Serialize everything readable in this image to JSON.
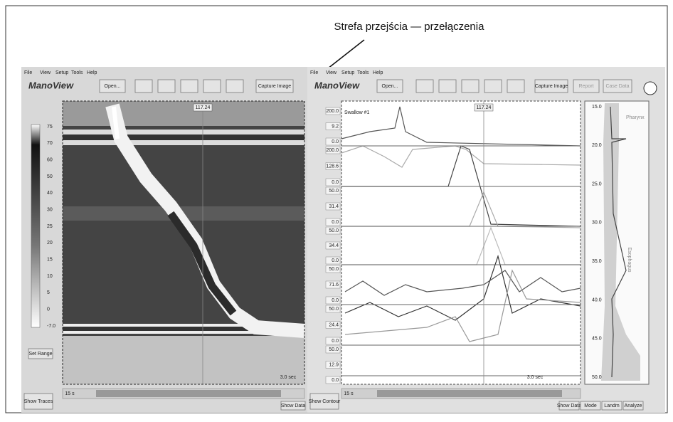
{
  "annotation": "Strefa przejścia — przełączenia",
  "left_window": {
    "menu": [
      "File",
      "View",
      "Setup",
      "Tools",
      "Help"
    ],
    "logo": "ManoView",
    "open": "Open...",
    "capture": "Capture Image",
    "time_marker": "117.24",
    "color_scale": [
      "75",
      "70",
      "60",
      "50",
      "40",
      "30",
      "25",
      "20",
      "15",
      "10",
      "5",
      "0",
      "-7.0"
    ],
    "set_range": "Set Range",
    "time_scale": "3.0 sec",
    "speed": "15 s",
    "show_traces": "Show Traces",
    "show_data": "Show Data"
  },
  "right_window": {
    "menu": [
      "File",
      "View",
      "Setup",
      "Tools",
      "Help"
    ],
    "logo": "ManoView",
    "open": "Open...",
    "capture": "Capture Image",
    "report": "Report",
    "case_data": "Case Data",
    "time_marker": "117.24",
    "swallow": "Swallow #1",
    "channel_labels": [
      "200.0",
      "9.2",
      "0.0",
      "200.0",
      "128.6",
      "0.0",
      "50.0",
      "31.4",
      "0.0",
      "50.0",
      "34.4",
      "0.0",
      "50.0",
      "71.6",
      "0.0",
      "50.0",
      "24.4",
      "0.0",
      "50.0",
      "12.9",
      "0.0"
    ],
    "depth_labels": [
      "15.0",
      "20.0",
      "25.0",
      "30.0",
      "35.0",
      "40.0",
      "45.0",
      "50.0"
    ],
    "pharynx": "Pharynx",
    "esophagus": "Esophagus",
    "time_scale": "3.0 sec",
    "speed": "15 s",
    "show_contour": "Show Contour",
    "bottom_buttons": [
      "Show Data",
      "Mode",
      "Landm",
      "Analyze"
    ]
  }
}
